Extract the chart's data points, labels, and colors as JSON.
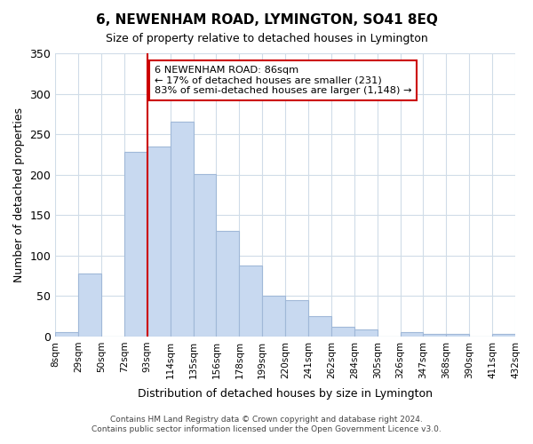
{
  "title": "6, NEWENHAM ROAD, LYMINGTON, SO41 8EQ",
  "subtitle": "Size of property relative to detached houses in Lymington",
  "xlabel": "Distribution of detached houses by size in Lymington",
  "ylabel": "Number of detached properties",
  "bar_labels": [
    "8sqm",
    "29sqm",
    "50sqm",
    "72sqm",
    "93sqm",
    "114sqm",
    "135sqm",
    "156sqm",
    "178sqm",
    "199sqm",
    "220sqm",
    "241sqm",
    "262sqm",
    "284sqm",
    "305sqm",
    "326sqm",
    "347sqm",
    "368sqm",
    "390sqm",
    "411sqm",
    "432sqm"
  ],
  "bar_values": [
    5,
    78,
    0,
    228,
    235,
    265,
    201,
    131,
    88,
    50,
    45,
    25,
    12,
    9,
    0,
    5,
    3,
    3,
    0,
    3
  ],
  "bar_color": "#c8d9f0",
  "bar_edge_color": "#a0b8d8",
  "vline_x": 4,
  "vline_color": "#cc0000",
  "ylim": [
    0,
    350
  ],
  "yticks": [
    0,
    50,
    100,
    150,
    200,
    250,
    300,
    350
  ],
  "annotation_text": "6 NEWENHAM ROAD: 86sqm\n← 17% of detached houses are smaller (231)\n83% of semi-detached houses are larger (1,148) →",
  "annotation_box_color": "#ffffff",
  "annotation_box_edge": "#cc0000",
  "footer_line1": "Contains HM Land Registry data © Crown copyright and database right 2024.",
  "footer_line2": "Contains public sector information licensed under the Open Government Licence v3.0.",
  "bg_color": "#ffffff",
  "grid_color": "#d0dce8"
}
